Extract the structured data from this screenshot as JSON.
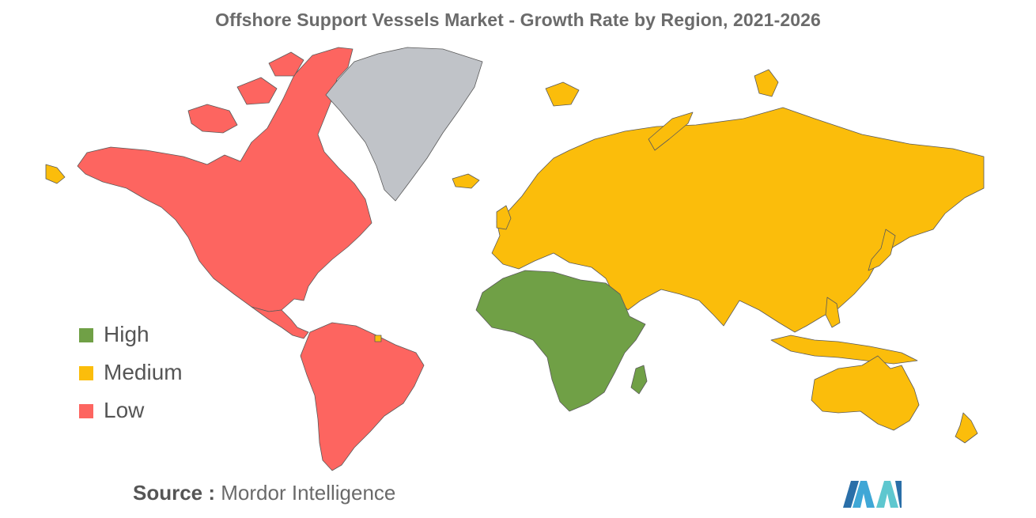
{
  "title": "Offshore Support Vessels Market - Growth Rate by Region, 2021-2026",
  "colors": {
    "high": "#70a046",
    "medium": "#fbbd0b",
    "low": "#fd6560",
    "no_data": "#c0c3c8",
    "border": "#5a5a5a"
  },
  "legend": [
    {
      "label": "High",
      "color": "#70a046"
    },
    {
      "label": "Medium",
      "color": "#fbbd0b"
    },
    {
      "label": "Low",
      "color": "#fd6560"
    }
  ],
  "regions": {
    "americas": "Low",
    "africa": "High",
    "europe_asia_oceania": "Medium",
    "greenland": "No data"
  },
  "source": {
    "key": "Source :",
    "value": "Mordor Intelligence"
  },
  "logo_icon": "mordor-intelligence-logo"
}
